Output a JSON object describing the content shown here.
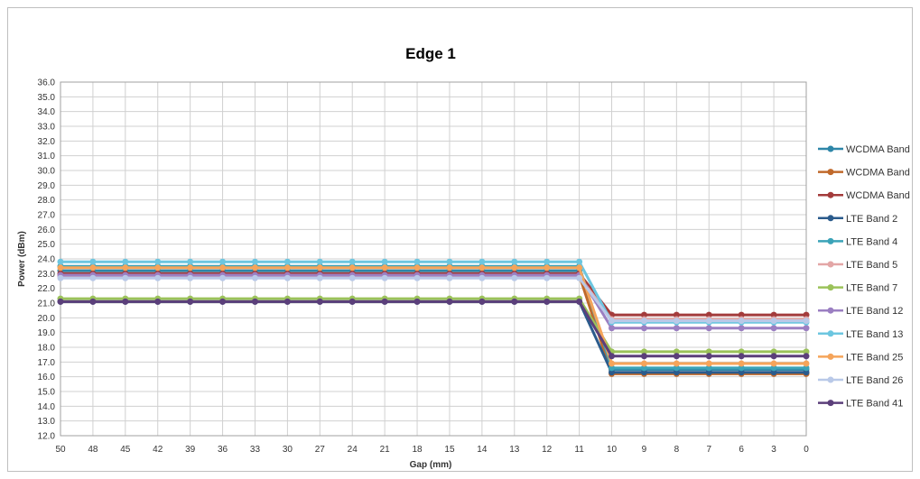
{
  "chart_data": {
    "type": "line",
    "title": "Edge 1",
    "xlabel": "Gap (mm)",
    "ylabel": "Power (dBm)",
    "categories": [
      "50",
      "48",
      "45",
      "42",
      "39",
      "36",
      "33",
      "30",
      "27",
      "24",
      "21",
      "18",
      "15",
      "14",
      "13",
      "12",
      "11",
      "10",
      "9",
      "8",
      "7",
      "6",
      "3",
      "0"
    ],
    "ylim": [
      12.0,
      36.0
    ],
    "ytick_step": 1.0,
    "grid": true,
    "legend_position": "right",
    "series": [
      {
        "name": "WCDMA Band",
        "color": "#2E86A8",
        "values": [
          23.2,
          23.2,
          23.2,
          23.2,
          23.2,
          23.2,
          23.2,
          23.2,
          23.2,
          23.2,
          23.2,
          23.2,
          23.2,
          23.2,
          23.2,
          23.2,
          23.2,
          16.5,
          16.5,
          16.5,
          16.5,
          16.5,
          16.5,
          16.5
        ]
      },
      {
        "name": "WCDMA Band",
        "color": "#C0692B",
        "values": [
          22.9,
          22.9,
          22.9,
          22.9,
          22.9,
          22.9,
          22.9,
          22.9,
          22.9,
          22.9,
          22.9,
          22.9,
          22.9,
          22.9,
          22.9,
          22.9,
          22.9,
          16.2,
          16.2,
          16.2,
          16.2,
          16.2,
          16.2,
          16.2
        ]
      },
      {
        "name": "WCDMA Band",
        "color": "#A33B3B",
        "values": [
          23.0,
          23.0,
          23.0,
          23.0,
          23.0,
          23.0,
          23.0,
          23.0,
          23.0,
          23.0,
          23.0,
          23.0,
          23.0,
          23.0,
          23.0,
          23.0,
          23.0,
          20.2,
          20.2,
          20.2,
          20.2,
          20.2,
          20.2,
          20.2
        ]
      },
      {
        "name": "LTE Band 2",
        "color": "#2B5B8C",
        "values": [
          21.1,
          21.1,
          21.1,
          21.1,
          21.1,
          21.1,
          21.1,
          21.1,
          21.1,
          21.1,
          21.1,
          21.1,
          21.1,
          21.1,
          21.1,
          21.1,
          21.1,
          16.3,
          16.3,
          16.3,
          16.3,
          16.3,
          16.3,
          16.3
        ]
      },
      {
        "name": "LTE Band 4",
        "color": "#3BA3B8",
        "values": [
          23.5,
          23.5,
          23.5,
          23.5,
          23.5,
          23.5,
          23.5,
          23.5,
          23.5,
          23.5,
          23.5,
          23.5,
          23.5,
          23.5,
          23.5,
          23.5,
          23.5,
          16.6,
          16.6,
          16.6,
          16.6,
          16.6,
          16.6,
          16.6
        ]
      },
      {
        "name": "LTE Band 5",
        "color": "#E3A6A6",
        "values": [
          22.8,
          22.8,
          22.8,
          22.8,
          22.8,
          22.8,
          22.8,
          22.8,
          22.8,
          22.8,
          22.8,
          22.8,
          22.8,
          22.8,
          22.8,
          22.8,
          22.8,
          19.9,
          19.9,
          19.9,
          19.9,
          19.9,
          19.9,
          19.9
        ]
      },
      {
        "name": "LTE Band 7",
        "color": "#9BC25A",
        "values": [
          21.3,
          21.3,
          21.3,
          21.3,
          21.3,
          21.3,
          21.3,
          21.3,
          21.3,
          21.3,
          21.3,
          21.3,
          21.3,
          21.3,
          21.3,
          21.3,
          21.3,
          17.7,
          17.7,
          17.7,
          17.7,
          17.7,
          17.7,
          17.7
        ]
      },
      {
        "name": "LTE Band 12",
        "color": "#9B7FC2",
        "values": [
          22.9,
          22.9,
          22.9,
          22.9,
          22.9,
          22.9,
          22.9,
          22.9,
          22.9,
          22.9,
          22.9,
          22.9,
          22.9,
          22.9,
          22.9,
          22.9,
          22.9,
          19.3,
          19.3,
          19.3,
          19.3,
          19.3,
          19.3,
          19.3
        ]
      },
      {
        "name": "LTE Band 13",
        "color": "#6CC6E0",
        "values": [
          23.8,
          23.8,
          23.8,
          23.8,
          23.8,
          23.8,
          23.8,
          23.8,
          23.8,
          23.8,
          23.8,
          23.8,
          23.8,
          23.8,
          23.8,
          23.8,
          23.8,
          19.7,
          19.7,
          19.7,
          19.7,
          19.7,
          19.7,
          19.7
        ]
      },
      {
        "name": "LTE Band 25",
        "color": "#F5A45A",
        "values": [
          23.4,
          23.4,
          23.4,
          23.4,
          23.4,
          23.4,
          23.4,
          23.4,
          23.4,
          23.4,
          23.4,
          23.4,
          23.4,
          23.4,
          23.4,
          23.4,
          23.4,
          16.9,
          16.9,
          16.9,
          16.9,
          16.9,
          16.9,
          16.9
        ]
      },
      {
        "name": "LTE Band 26",
        "color": "#B9C9E8",
        "values": [
          22.7,
          22.7,
          22.7,
          22.7,
          22.7,
          22.7,
          22.7,
          22.7,
          22.7,
          22.7,
          22.7,
          22.7,
          22.7,
          22.7,
          22.7,
          22.7,
          22.7,
          19.8,
          19.8,
          19.8,
          19.8,
          19.8,
          19.8,
          19.8
        ]
      },
      {
        "name": "LTE Band 41",
        "color": "#5B3F7A",
        "values": [
          21.1,
          21.1,
          21.1,
          21.1,
          21.1,
          21.1,
          21.1,
          21.1,
          21.1,
          21.1,
          21.1,
          21.1,
          21.1,
          21.1,
          21.1,
          21.1,
          21.1,
          17.4,
          17.4,
          17.4,
          17.4,
          17.4,
          17.4,
          17.4
        ]
      }
    ]
  }
}
